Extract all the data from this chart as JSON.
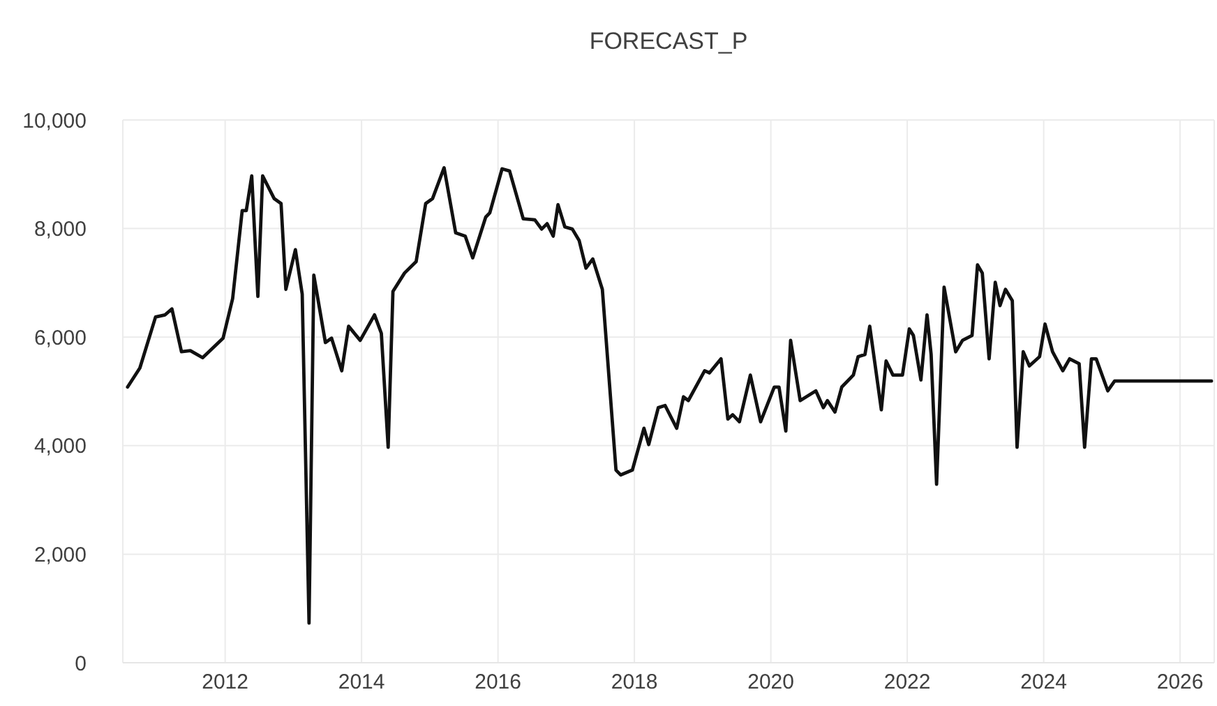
{
  "chart_data": {
    "type": "line",
    "title": "FORECAST_P",
    "x": [
      2010.57,
      2010.75,
      2010.98,
      2011.12,
      2011.22,
      2011.36,
      2011.49,
      2011.67,
      2011.97,
      2012.11,
      2012.25,
      2012.31,
      2012.39,
      2012.48,
      2012.55,
      2012.72,
      2012.82,
      2012.89,
      2013.03,
      2013.13,
      2013.23,
      2013.3,
      2013.47,
      2013.56,
      2013.71,
      2013.81,
      2013.98,
      2014.19,
      2014.29,
      2014.39,
      2014.46,
      2014.63,
      2014.8,
      2014.94,
      2015.04,
      2015.21,
      2015.38,
      2015.52,
      2015.63,
      2015.82,
      2015.88,
      2016.06,
      2016.17,
      2016.37,
      2016.54,
      2016.64,
      2016.72,
      2016.81,
      2016.88,
      2016.98,
      2017.09,
      2017.19,
      2017.29,
      2017.39,
      2017.53,
      2017.73,
      2017.8,
      2017.97,
      2018.14,
      2018.21,
      2018.35,
      2018.45,
      2018.62,
      2018.72,
      2018.79,
      2019.03,
      2019.1,
      2019.27,
      2019.37,
      2019.44,
      2019.54,
      2019.7,
      2019.85,
      2020.05,
      2020.12,
      2020.22,
      2020.29,
      2020.43,
      2020.66,
      2020.77,
      2020.83,
      2020.94,
      2021.04,
      2021.21,
      2021.28,
      2021.38,
      2021.45,
      2021.62,
      2021.69,
      2021.79,
      2021.93,
      2022.03,
      2022.09,
      2022.2,
      2022.29,
      2022.35,
      2022.43,
      2022.54,
      2022.71,
      2022.81,
      2022.95,
      2023.03,
      2023.1,
      2023.2,
      2023.29,
      2023.36,
      2023.44,
      2023.54,
      2023.61,
      2023.7,
      2023.79,
      2023.94,
      2024.02,
      2024.13,
      2024.28,
      2024.38,
      2024.52,
      2024.6,
      2024.7,
      2024.77,
      2024.94,
      2025.04,
      2026.46
    ],
    "series": [
      {
        "color": "#111111",
        "values": [
          5080,
          5430,
          6370,
          6410,
          6520,
          5730,
          5750,
          5620,
          5980,
          6710,
          8330,
          8330,
          8970,
          6750,
          8970,
          8550,
          8460,
          6880,
          7610,
          6790,
          730,
          7140,
          5900,
          5980,
          5380,
          6200,
          5940,
          6410,
          6070,
          3970,
          6840,
          7180,
          7390,
          8460,
          8550,
          9120,
          7920,
          7860,
          7460,
          8210,
          8290,
          9100,
          9060,
          8180,
          8160,
          7990,
          8090,
          7860,
          8440,
          8030,
          7990,
          7780,
          7270,
          7440,
          6880,
          3550,
          3460,
          3550,
          4320,
          4020,
          4700,
          4740,
          4320,
          4900,
          4830,
          5380,
          5340,
          5600,
          4490,
          4570,
          4440,
          5300,
          4440,
          5080,
          5080,
          4270,
          5940,
          4830,
          5010,
          4700,
          4830,
          4620,
          5080,
          5300,
          5640,
          5680,
          6200,
          4660,
          5560,
          5300,
          5300,
          6150,
          6030,
          5210,
          6410,
          5680,
          3290,
          6920,
          5730,
          5940,
          6030,
          7330,
          7180,
          5600,
          7010,
          6580,
          6880,
          6670,
          3970,
          5730,
          5470,
          5640,
          6240,
          5730,
          5380,
          5600,
          5510,
          3970,
          5600,
          5600,
          5010,
          5190,
          5190
        ]
      }
    ],
    "xlim": [
      2010.5,
      2026.5
    ],
    "xticks": [
      2012,
      2014,
      2016,
      2018,
      2020,
      2022,
      2024,
      2026
    ],
    "ylim": [
      0,
      10000
    ],
    "yticks": [
      0,
      {
        "value": 2000,
        "label": "2,000"
      },
      {
        "value": 4000,
        "label": "4,000"
      },
      {
        "value": 6000,
        "label": "6,000"
      },
      {
        "value": 8000,
        "label": "8,000"
      },
      {
        "value": 10000,
        "label": "10,000"
      }
    ],
    "grid": true
  }
}
